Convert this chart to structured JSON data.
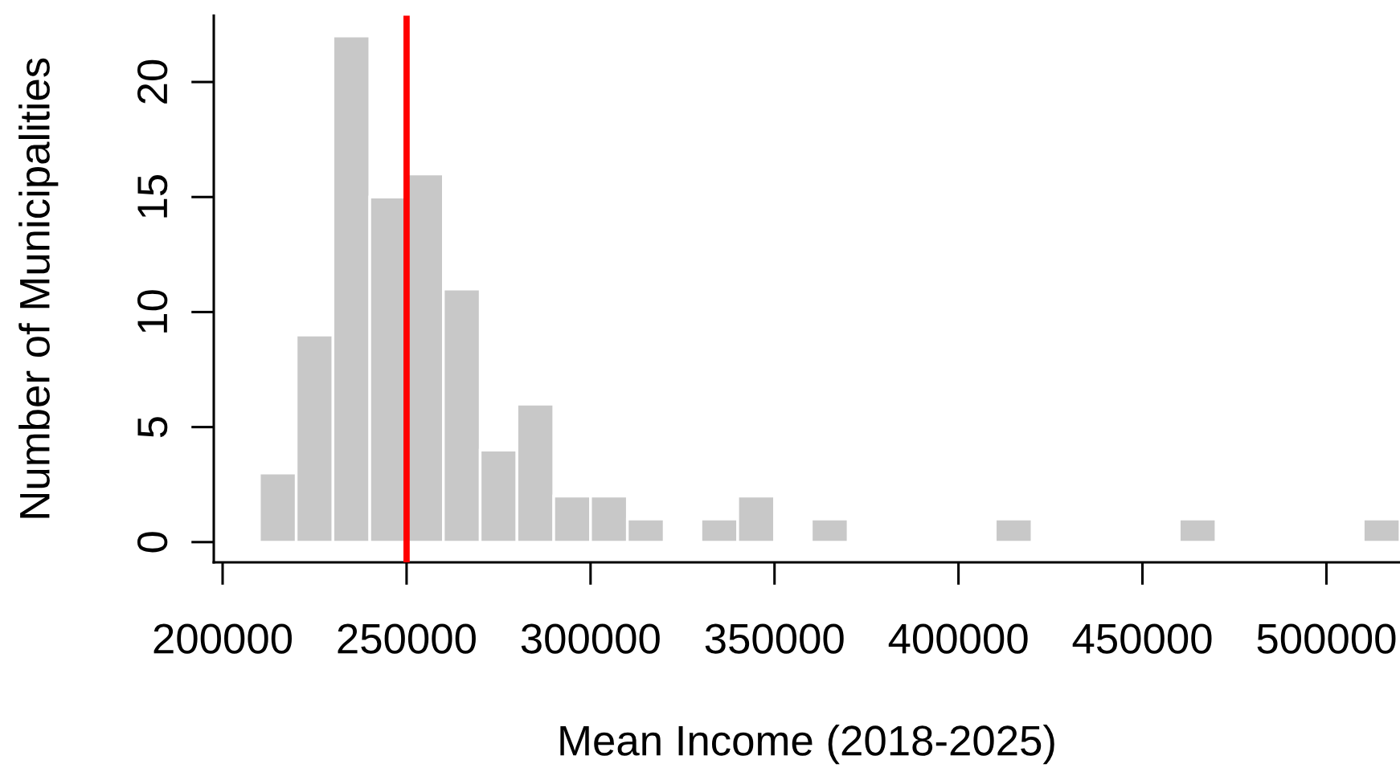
{
  "chart_data": {
    "type": "histogram",
    "xlabel": "Mean Income (2018-2025)",
    "ylabel": "Number of Municipalities",
    "bins": [
      210000,
      220000,
      230000,
      240000,
      250000,
      260000,
      270000,
      280000,
      290000,
      300000,
      310000,
      320000,
      330000,
      340000,
      350000,
      360000,
      370000,
      380000,
      390000,
      400000,
      410000,
      420000,
      430000,
      440000,
      450000,
      460000,
      470000,
      480000,
      490000,
      500000,
      510000,
      520000
    ],
    "values": [
      3,
      9,
      22,
      15,
      16,
      11,
      4,
      6,
      2,
      2,
      1,
      0,
      1,
      2,
      0,
      1,
      0,
      0,
      0,
      0,
      1,
      0,
      0,
      0,
      0,
      1,
      0,
      0,
      0,
      0,
      1
    ],
    "color": "#c8c8c8",
    "xlim": [
      197600,
      520000
    ],
    "ylim": [
      -0.88,
      22.88
    ],
    "xticks": [
      200000,
      250000,
      300000,
      350000,
      400000,
      450000,
      500000
    ],
    "yticks": [
      0,
      5,
      10,
      15,
      20
    ],
    "ref_lines": [
      {
        "axis": "x",
        "value": 250000,
        "color": "#ff0000"
      }
    ]
  }
}
